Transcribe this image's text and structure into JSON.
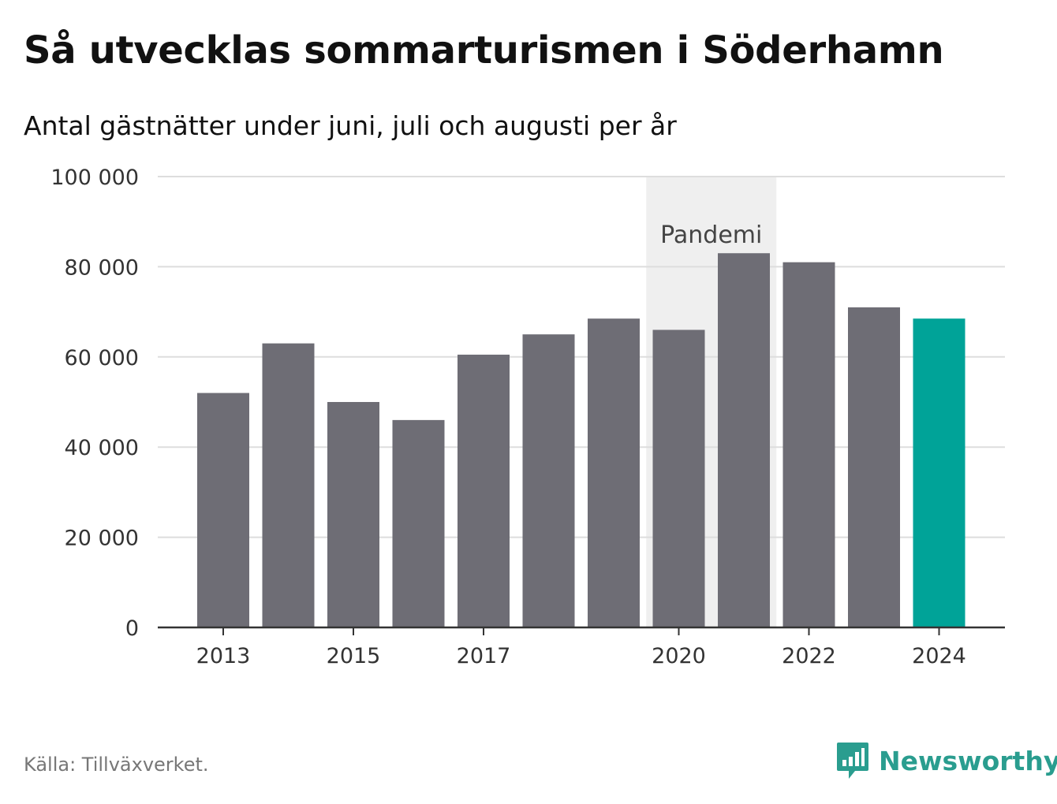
{
  "header": {
    "title": "Så utvecklas sommarturismen i Söderhamn",
    "subtitle": "Antal gästnätter under juni, juli och augusti per år"
  },
  "footer": {
    "source": "Källa: Tillväxverket.",
    "brand": "Newsworthy"
  },
  "colors": {
    "bar": "#6e6d75",
    "highlight": "#00a398",
    "band": "#efefef",
    "grid": "#dddddd",
    "axis": "#333333",
    "brand": "#2a9d8f"
  },
  "chart_data": {
    "type": "bar",
    "title": "Så utvecklas sommarturismen i Söderhamn",
    "subtitle": "Antal gästnätter under juni, juli och augusti per år",
    "categories": [
      2013,
      2014,
      2015,
      2016,
      2017,
      2018,
      2019,
      2020,
      2021,
      2022,
      2023,
      2024
    ],
    "values": [
      52000,
      63000,
      50000,
      46000,
      60500,
      65000,
      68500,
      66000,
      83000,
      81000,
      71000,
      68500
    ],
    "highlight_category": 2024,
    "ylim": [
      0,
      100000
    ],
    "yticks": [
      0,
      20000,
      40000,
      60000,
      80000,
      100000
    ],
    "ytick_labels": [
      "0",
      "20 000",
      "40 000",
      "60 000",
      "80 000",
      "100 000"
    ],
    "xtick_labels": [
      "2013",
      "2015",
      "2017",
      "2020",
      "2022",
      "2024"
    ],
    "xlabel": "",
    "ylabel": "",
    "grid": true,
    "legend": "none",
    "annotation": {
      "label": "Pandemi",
      "from": 2020,
      "to": 2021
    }
  }
}
